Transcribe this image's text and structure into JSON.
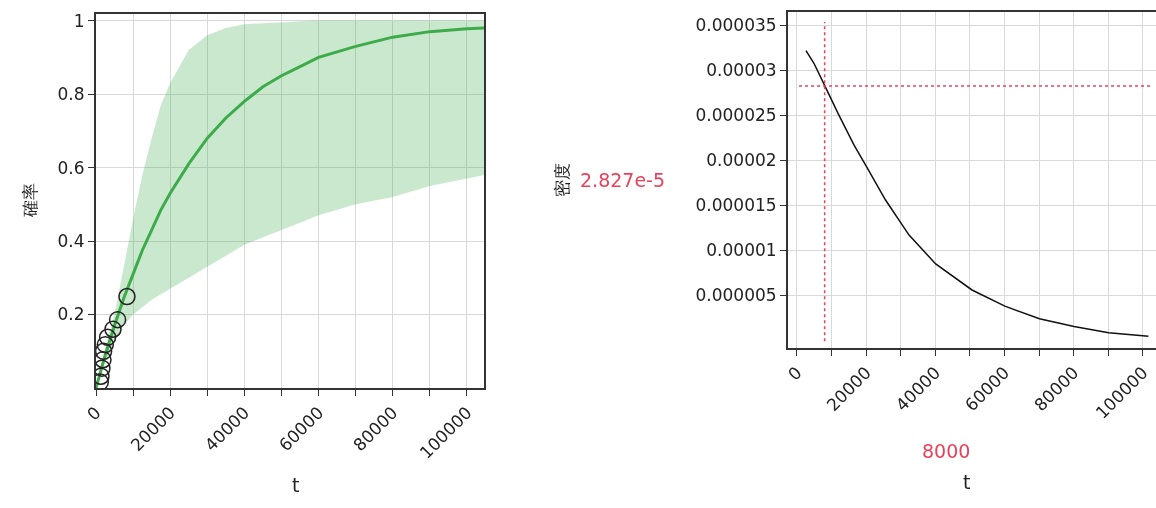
{
  "chart_data": [
    {
      "type": "line",
      "xlabel": "t",
      "ylabel": "確率",
      "xlim": [
        0,
        104600
      ],
      "ylim": [
        0,
        1.018
      ],
      "xticks": [
        0,
        {
          "value": 10000,
          "label": null
        },
        20000,
        {
          "value": 30000,
          "label": null
        },
        40000,
        {
          "value": 50000,
          "label": null
        },
        60000,
        {
          "value": 70000,
          "label": null
        },
        80000,
        {
          "value": 90000,
          "label": null
        },
        100000
      ],
      "yticks": [
        0.2,
        0.4,
        0.6,
        0.8,
        1
      ],
      "grid": true,
      "series": [
        {
          "color": "#3dab4a",
          "marker": "none",
          "line_style": "solid",
          "x": [
            0,
            2500,
            5000,
            7500,
            10000,
            12500,
            15000,
            17500,
            20000,
            25000,
            30000,
            35000,
            40000,
            45000,
            50000,
            55000,
            60000,
            70000,
            80000,
            90000,
            100000,
            104600
          ],
          "values": [
            0,
            0.09,
            0.17,
            0.245,
            0.31,
            0.375,
            0.43,
            0.485,
            0.53,
            0.61,
            0.68,
            0.735,
            0.78,
            0.82,
            0.85,
            0.875,
            0.9,
            0.93,
            0.955,
            0.97,
            0.978,
            0.98
          ],
          "lower": [
            0,
            0.07,
            0.13,
            0.17,
            0.2,
            0.22,
            0.24,
            0.255,
            0.27,
            0.3,
            0.33,
            0.36,
            0.39,
            0.41,
            0.43,
            0.45,
            0.47,
            0.5,
            0.52,
            0.55,
            0.57,
            0.58
          ],
          "upper": [
            0,
            0.11,
            0.2,
            0.33,
            0.46,
            0.58,
            0.68,
            0.77,
            0.83,
            0.92,
            0.96,
            0.98,
            0.99,
            0.993,
            0.995,
            0.998,
            1.0,
            1.0,
            1.0,
            1.0,
            1.0,
            1.0
          ]
        },
        {
          "type": "scatter",
          "color": "#222222",
          "marker": "circle",
          "x": [
            1160,
            1340,
            1600,
            1880,
            2050,
            2500,
            3130,
            4580,
            5820,
            8350
          ],
          "values": [
            0.016,
            0.032,
            0.054,
            0.077,
            0.1,
            0.118,
            0.138,
            0.16,
            0.186,
            0.249
          ]
        }
      ]
    },
    {
      "type": "line",
      "xlabel": "t",
      "ylabel": "密度",
      "xlim": [
        -2600,
        103800
      ],
      "ylim": [
        -8.5e-07,
        3.65e-05
      ],
      "xticks": [
        0,
        {
          "value": 10000,
          "label": null
        },
        20000,
        {
          "value": 30000,
          "label": null
        },
        40000,
        {
          "value": 50000,
          "label": null
        },
        60000,
        {
          "value": 70000,
          "label": null
        },
        80000,
        {
          "value": 90000,
          "label": null
        },
        100000
      ],
      "yticks": [
        {
          "value": 5e-06,
          "label": "0.000005"
        },
        {
          "value": 1e-05,
          "label": "0.00001"
        },
        {
          "value": 1.5e-05,
          "label": "0.000015"
        },
        {
          "value": 2e-05,
          "label": "0.00002"
        },
        {
          "value": 2.5e-05,
          "label": "0.000025"
        },
        {
          "value": 3e-05,
          "label": "0.00003"
        },
        {
          "value": 3.5e-05,
          "label": "0.000035"
        }
      ],
      "grid": true,
      "series": [
        {
          "color": "#111111",
          "marker": "none",
          "line_style": "solid",
          "x": [
            2600,
            4900,
            8300,
            11900,
            16500,
            20100,
            25600,
            32400,
            40100,
            50600,
            60100,
            70100,
            80100,
            90100,
            101600
          ],
          "values": [
            3.22e-05,
            3.08e-05,
            2.81e-05,
            2.52e-05,
            2.17e-05,
            1.93e-05,
            1.56e-05,
            1.17e-05,
            8.5e-06,
            5.6e-06,
            3.8e-06,
            2.4e-06,
            1.55e-06,
            8.5e-07,
            4.5e-07
          ]
        }
      ],
      "ref_lines": [
        {
          "axis": "x",
          "value": 8000,
          "label": "8000",
          "color": "#e8425a",
          "line_style": "dotted"
        },
        {
          "axis": "y",
          "value": 2.827e-05,
          "label": "2.827e-5",
          "color": "#e8425a",
          "line_style": "dotted"
        }
      ]
    }
  ]
}
